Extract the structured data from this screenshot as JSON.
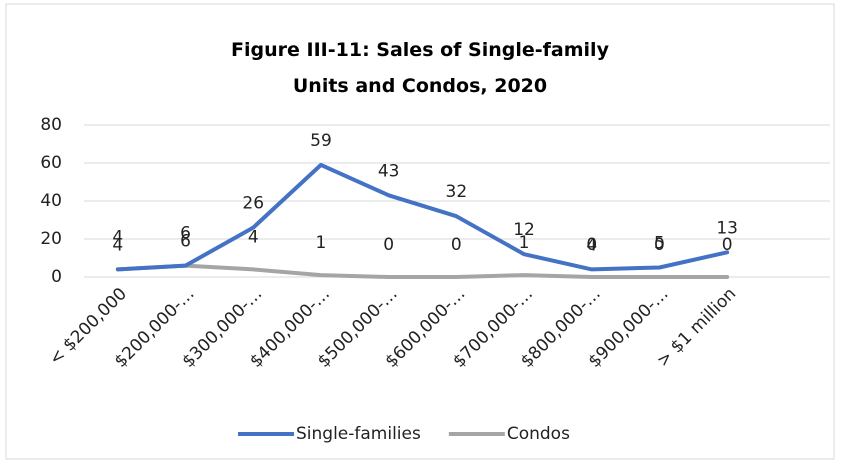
{
  "chart_data": {
    "type": "line",
    "title": "Figure III-11: Sales of Single-family Units and Condos, 2020",
    "categories": [
      "< $200,000",
      "$200,000-…",
      "$300,000-…",
      "$400,000-…",
      "$500,000-…",
      "$600,000-…",
      "$700,000-…",
      "$800,000-…",
      "$900,000-…",
      "> $1 million"
    ],
    "series": [
      {
        "name": "Single-families",
        "color": "#4472c4",
        "values": [
          4,
          6,
          26,
          59,
          43,
          32,
          12,
          4,
          5,
          13
        ]
      },
      {
        "name": "Condos",
        "color": "#a5a5a5",
        "values": [
          4,
          6,
          4,
          1,
          0,
          0,
          1,
          0,
          0,
          0
        ]
      }
    ],
    "ylim": [
      0,
      80
    ],
    "yticks": [
      0,
      20,
      40,
      60,
      80
    ],
    "grid": true,
    "legend": "bottom"
  }
}
